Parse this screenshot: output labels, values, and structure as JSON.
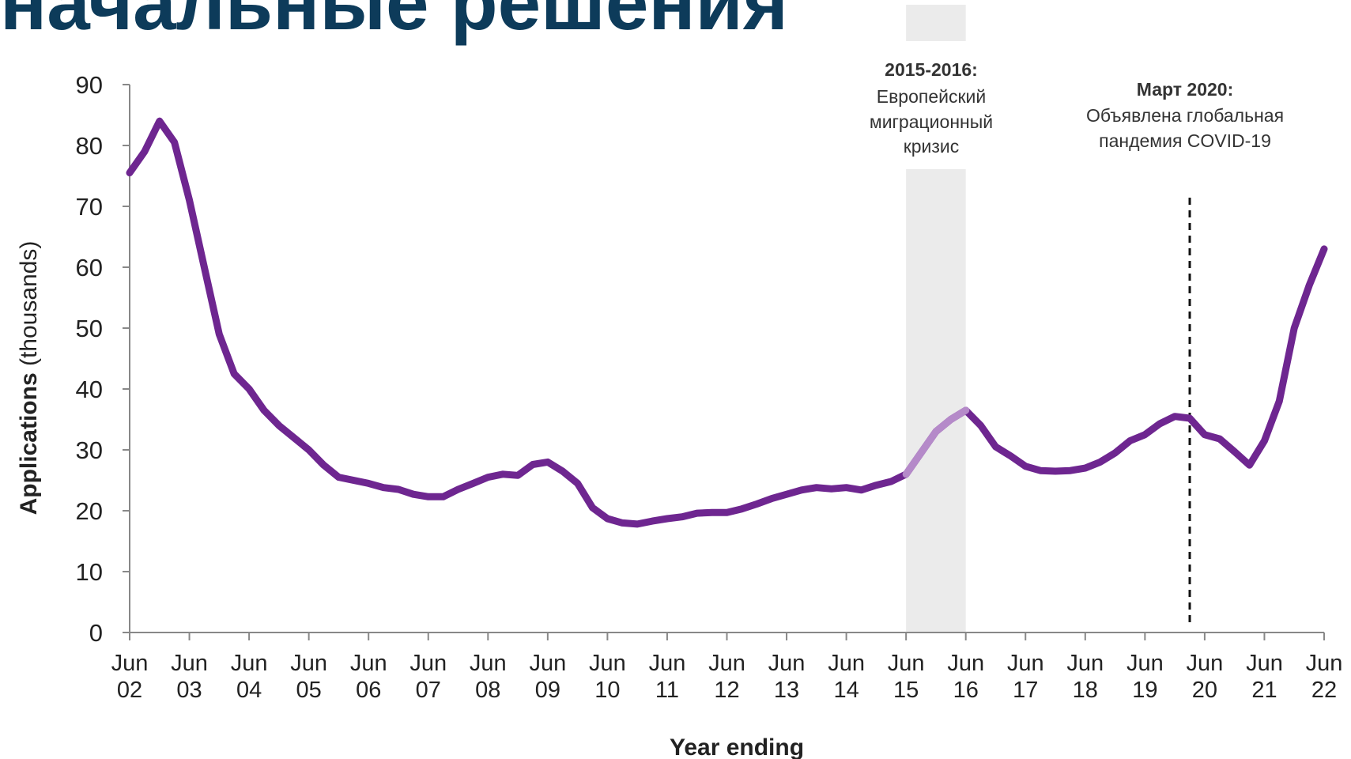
{
  "slide": {
    "title": "начальные решения"
  },
  "chart_data": {
    "type": "line",
    "xlabel": "Year ending",
    "ylabel_bold": "Applications",
    "ylabel_rest": " (thousands)",
    "ylim": [
      0,
      90
    ],
    "yticks": [
      0,
      10,
      20,
      30,
      40,
      50,
      60,
      70,
      80,
      90
    ],
    "xlim": [
      2002.5,
      2022.5
    ],
    "xticks": [
      {
        "value": 2002.5,
        "line1": "Jun",
        "line2": "02"
      },
      {
        "value": 2003.5,
        "line1": "Jun",
        "line2": "03"
      },
      {
        "value": 2004.5,
        "line1": "Jun",
        "line2": "04"
      },
      {
        "value": 2005.5,
        "line1": "Jun",
        "line2": "05"
      },
      {
        "value": 2006.5,
        "line1": "Jun",
        "line2": "06"
      },
      {
        "value": 2007.5,
        "line1": "Jun",
        "line2": "07"
      },
      {
        "value": 2008.5,
        "line1": "Jun",
        "line2": "08"
      },
      {
        "value": 2009.5,
        "line1": "Jun",
        "line2": "09"
      },
      {
        "value": 2010.5,
        "line1": "Jun",
        "line2": "10"
      },
      {
        "value": 2011.5,
        "line1": "Jun",
        "line2": "11"
      },
      {
        "value": 2012.5,
        "line1": "Jun",
        "line2": "12"
      },
      {
        "value": 2013.5,
        "line1": "Jun",
        "line2": "13"
      },
      {
        "value": 2014.5,
        "line1": "Jun",
        "line2": "14"
      },
      {
        "value": 2015.5,
        "line1": "Jun",
        "line2": "15"
      },
      {
        "value": 2016.5,
        "line1": "Jun",
        "line2": "16"
      },
      {
        "value": 2017.5,
        "line1": "Jun",
        "line2": "17"
      },
      {
        "value": 2018.5,
        "line1": "Jun",
        "line2": "18"
      },
      {
        "value": 2019.5,
        "line1": "Jun",
        "line2": "19"
      },
      {
        "value": 2020.5,
        "line1": "Jun",
        "line2": "20"
      },
      {
        "value": 2021.5,
        "line1": "Jun",
        "line2": "21"
      },
      {
        "value": 2022.5,
        "line1": "Jun",
        "line2": "22"
      }
    ],
    "series": [
      {
        "color": "#6e2690",
        "highlight_color": "#b58ac9",
        "highlight_range": [
          2015.5,
          2016.5
        ],
        "x": [
          2002.5,
          2002.75,
          2003.0,
          2003.25,
          2003.5,
          2003.75,
          2004.0,
          2004.25,
          2004.5,
          2004.75,
          2005.0,
          2005.25,
          2005.5,
          2005.75,
          2006.0,
          2006.25,
          2006.5,
          2006.75,
          2007.0,
          2007.25,
          2007.5,
          2007.75,
          2008.0,
          2008.25,
          2008.5,
          2008.75,
          2009.0,
          2009.25,
          2009.5,
          2009.75,
          2010.0,
          2010.25,
          2010.5,
          2010.75,
          2011.0,
          2011.25,
          2011.5,
          2011.75,
          2012.0,
          2012.25,
          2012.5,
          2012.75,
          2013.0,
          2013.25,
          2013.5,
          2013.75,
          2014.0,
          2014.25,
          2014.5,
          2014.75,
          2015.0,
          2015.25,
          2015.5,
          2015.75,
          2016.0,
          2016.25,
          2016.5,
          2016.75,
          2017.0,
          2017.25,
          2017.5,
          2017.75,
          2018.0,
          2018.25,
          2018.5,
          2018.75,
          2019.0,
          2019.25,
          2019.5,
          2019.75,
          2020.0,
          2020.25,
          2020.5,
          2020.75,
          2021.0,
          2021.25,
          2021.5,
          2021.75,
          2022.0,
          2022.25,
          2022.5
        ],
        "y": [
          75.5,
          79,
          84,
          80.5,
          71,
          60,
          49,
          42.5,
          40,
          36.5,
          34,
          32,
          30,
          27.5,
          25.5,
          25,
          24.5,
          23.8,
          23.5,
          22.7,
          22.3,
          22.3,
          23.5,
          24.5,
          25.5,
          26,
          25.8,
          27.6,
          28,
          26.5,
          24.5,
          20.5,
          18.7,
          18,
          17.8,
          18.3,
          18.7,
          19,
          19.6,
          19.7,
          19.7,
          20.3,
          21.1,
          22,
          22.7,
          23.4,
          23.8,
          23.6,
          23.8,
          23.4,
          24.2,
          24.8,
          26,
          29.5,
          33,
          35,
          36.5,
          34,
          30.5,
          29,
          27.3,
          26.6,
          26.5,
          26.6,
          27,
          28,
          29.5,
          31.5,
          32.5,
          34.3,
          35.5,
          35.2,
          32.5,
          31.8,
          29.7,
          27.5,
          31.5,
          38,
          50,
          57,
          63
        ]
      }
    ],
    "shaded_period": [
      2015.5,
      2016.5
    ],
    "vline_x": 2020.25,
    "annotations": [
      {
        "bold": "2015-2016:",
        "lines": [
          "Европейский",
          "миграционный",
          "кризис"
        ]
      },
      {
        "bold": "Март 2020:",
        "lines": [
          "Объявлена глобальная",
          "пандемия COVID-19"
        ]
      }
    ]
  }
}
